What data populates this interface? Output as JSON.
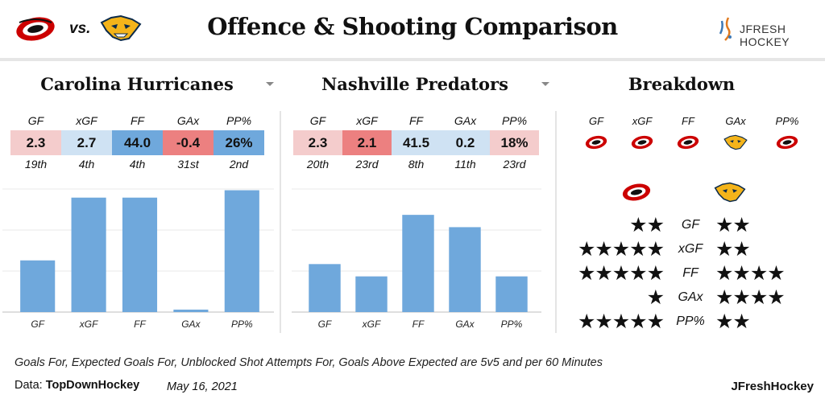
{
  "header": {
    "vs_text": "vs.",
    "title": "Offence & Shooting Comparison",
    "brand_text": "JFRESH HOCKEY"
  },
  "colors": {
    "bar": "#6fa8dc",
    "grid": "#e8e8e8",
    "good_dark": "#6fa8dc",
    "good_light": "#cfe2f3",
    "bad_light": "#f4cccc",
    "bad_mid": "#f0a8a8",
    "bad_dark": "#ec8080"
  },
  "icons": {
    "team1_logo": "carolina-hurricanes-logo",
    "team2_logo": "nashville-predators-logo",
    "brand_logo": "jfresh-hockey-logo",
    "star": "★"
  },
  "panels": [
    {
      "team": "Carolina Hurricanes",
      "stats": [
        {
          "label": "GF",
          "value": "2.3",
          "rank": "19th",
          "color": "#f4cccc"
        },
        {
          "label": "xGF",
          "value": "2.7",
          "rank": "4th",
          "color": "#cfe2f3"
        },
        {
          "label": "FF",
          "value": "44.0",
          "rank": "4th",
          "color": "#6fa8dc"
        },
        {
          "label": "GAx",
          "value": "-0.4",
          "rank": "31st",
          "color": "#ec8080"
        },
        {
          "label": "PP%",
          "value": "26%",
          "rank": "2nd",
          "color": "#6fa8dc"
        }
      ]
    },
    {
      "team": "Nashville Predators",
      "stats": [
        {
          "label": "GF",
          "value": "2.3",
          "rank": "20th",
          "color": "#f4cccc"
        },
        {
          "label": "xGF",
          "value": "2.1",
          "rank": "23rd",
          "color": "#ec8080"
        },
        {
          "label": "FF",
          "value": "41.5",
          "rank": "8th",
          "color": "#cfe2f3"
        },
        {
          "label": "GAx",
          "value": "0.2",
          "rank": "11th",
          "color": "#cfe2f3"
        },
        {
          "label": "PP%",
          "value": "18%",
          "rank": "23rd",
          "color": "#f4cccc"
        }
      ]
    }
  ],
  "chart_data": [
    {
      "type": "bar",
      "categories": [
        "GF",
        "xGF",
        "FF",
        "GAx",
        "PP%"
      ],
      "values": [
        42,
        93,
        93,
        2,
        99
      ],
      "ylim": [
        0,
        100
      ],
      "grid": true
    },
    {
      "type": "bar",
      "categories": [
        "GF",
        "xGF",
        "FF",
        "GAx",
        "PP%"
      ],
      "values": [
        39,
        29,
        79,
        69,
        29
      ],
      "ylim": [
        0,
        100
      ],
      "grid": true
    }
  ],
  "breakdown": {
    "title": "Breakdown",
    "stat_labels": [
      "GF",
      "xGF",
      "FF",
      "GAx",
      "PP%"
    ],
    "leaders": [
      "carolina",
      "carolina",
      "carolina",
      "nashville",
      "carolina"
    ],
    "rows": [
      {
        "label": "GF",
        "team1_stars": 2,
        "team2_stars": 2
      },
      {
        "label": "xGF",
        "team1_stars": 5,
        "team2_stars": 2
      },
      {
        "label": "FF",
        "team1_stars": 5,
        "team2_stars": 4
      },
      {
        "label": "GAx",
        "team1_stars": 1,
        "team2_stars": 4
      },
      {
        "label": "PP%",
        "team1_stars": 5,
        "team2_stars": 2
      }
    ]
  },
  "footer": {
    "footnote": "Goals For, Expected Goals For, Unblocked Shot Attempts For, Goals Above Expected are 5v5 and per 60 Minutes",
    "data_label": "Data: ",
    "data_source": "TopDownHockey",
    "date": "May 16, 2021",
    "signature": "JFreshHockey"
  }
}
